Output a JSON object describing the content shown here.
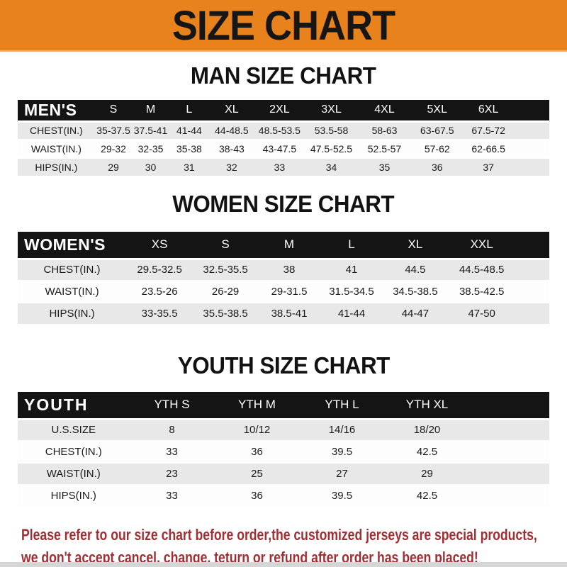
{
  "banner": {
    "title": "SIZE CHART",
    "bg_color": "#E8821C",
    "text_color": "#161616"
  },
  "sections": {
    "men": {
      "heading": "MAN SIZE CHART",
      "header_label": "MEN'S",
      "columns": [
        "S",
        "M",
        "L",
        "XL",
        "2XL",
        "3XL",
        "4XL",
        "5XL",
        "6XL"
      ],
      "rows": [
        {
          "label": "CHEST(IN.)",
          "values": [
            "35-37.5",
            "37.5-41",
            "41-44",
            "44-48.5",
            "48.5-53.5",
            "53.5-58",
            "58-63",
            "63-67.5",
            "67.5-72"
          ]
        },
        {
          "label": "WAIST(IN.)",
          "values": [
            "29-32",
            "32-35",
            "35-38",
            "38-43",
            "43-47.5",
            "47.5-52.5",
            "52.5-57",
            "57-62",
            "62-66.5"
          ]
        },
        {
          "label": "HIPS(IN.)",
          "values": [
            "29",
            "30",
            "31",
            "32",
            "33",
            "34",
            "35",
            "36",
            "37"
          ]
        }
      ]
    },
    "women": {
      "heading": "WOMEN SIZE CHART",
      "header_label": "WOMEN'S",
      "columns": [
        "XS",
        "S",
        "M",
        "L",
        "XL",
        "XXL"
      ],
      "rows": [
        {
          "label": "CHEST(IN.)",
          "values": [
            "29.5-32.5",
            "32.5-35.5",
            "38",
            "41",
            "44.5",
            "44.5-48.5"
          ]
        },
        {
          "label": "WAIST(IN.)",
          "values": [
            "23.5-26",
            "26-29",
            "29-31.5",
            "31.5-34.5",
            "34.5-38.5",
            "38.5-42.5"
          ]
        },
        {
          "label": "HIPS(IN.)",
          "values": [
            "33-35.5",
            "35.5-38.5",
            "38.5-41",
            "41-44",
            "44-47",
            "47-50"
          ]
        }
      ]
    },
    "youth": {
      "heading": "YOUTH SIZE CHART",
      "header_label": "YOUTH",
      "columns": [
        "YTH S",
        "YTH M",
        "YTH L",
        "YTH XL"
      ],
      "rows": [
        {
          "label": "U.S.SIZE",
          "values": [
            "8",
            "10/12",
            "14/16",
            "18/20"
          ]
        },
        {
          "label": "CHEST(IN.)",
          "values": [
            "33",
            "36",
            "39.5",
            "42.5"
          ]
        },
        {
          "label": "WAIST(IN.)",
          "values": [
            "23",
            "25",
            "27",
            "29"
          ]
        },
        {
          "label": "HIPS(IN.)",
          "values": [
            "33",
            "36",
            "39.5",
            "42.5"
          ]
        }
      ]
    }
  },
  "footer": {
    "line1": "Please refer to our size chart before order,the customized jerseys are special products,",
    "line2": "we don't accept cancel, change, teturn or refund after order has been placed!",
    "text_color": "#A22E33"
  },
  "colors": {
    "banner_orange": "#E8821C",
    "table_header_bg": "#141414",
    "table_row_alt": "#E8E8E8",
    "table_row_white": "#FDFDFD",
    "footer_red": "#A22E33",
    "bottom_strip_gray": "#D6D6D6"
  },
  "chart_data": [
    {
      "type": "table",
      "title": "MAN SIZE CHART",
      "columns": [
        "MEN'S",
        "S",
        "M",
        "L",
        "XL",
        "2XL",
        "3XL",
        "4XL",
        "5XL",
        "6XL"
      ],
      "rows": [
        [
          "CHEST(IN.)",
          "35-37.5",
          "37.5-41",
          "41-44",
          "44-48.5",
          "48.5-53.5",
          "53.5-58",
          "58-63",
          "63-67.5",
          "67.5-72"
        ],
        [
          "WAIST(IN.)",
          "29-32",
          "32-35",
          "35-38",
          "38-43",
          "43-47.5",
          "47.5-52.5",
          "52.5-57",
          "57-62",
          "62-66.5"
        ],
        [
          "HIPS(IN.)",
          "29",
          "30",
          "31",
          "32",
          "33",
          "34",
          "35",
          "36",
          "37"
        ]
      ]
    },
    {
      "type": "table",
      "title": "WOMEN SIZE CHART",
      "columns": [
        "WOMEN'S",
        "XS",
        "S",
        "M",
        "L",
        "XL",
        "XXL"
      ],
      "rows": [
        [
          "CHEST(IN.)",
          "29.5-32.5",
          "32.5-35.5",
          "38",
          "41",
          "44.5",
          "44.5-48.5"
        ],
        [
          "WAIST(IN.)",
          "23.5-26",
          "26-29",
          "29-31.5",
          "31.5-34.5",
          "34.5-38.5",
          "38.5-42.5"
        ],
        [
          "HIPS(IN.)",
          "33-35.5",
          "35.5-38.5",
          "38.5-41",
          "41-44",
          "44-47",
          "47-50"
        ]
      ]
    },
    {
      "type": "table",
      "title": "YOUTH SIZE CHART",
      "columns": [
        "YOUTH",
        "YTH S",
        "YTH M",
        "YTH L",
        "YTH XL"
      ],
      "rows": [
        [
          "U.S.SIZE",
          "8",
          "10/12",
          "14/16",
          "18/20"
        ],
        [
          "CHEST(IN.)",
          "33",
          "36",
          "39.5",
          "42.5"
        ],
        [
          "WAIST(IN.)",
          "23",
          "25",
          "27",
          "29"
        ],
        [
          "HIPS(IN.)",
          "33",
          "36",
          "39.5",
          "42.5"
        ]
      ]
    }
  ]
}
